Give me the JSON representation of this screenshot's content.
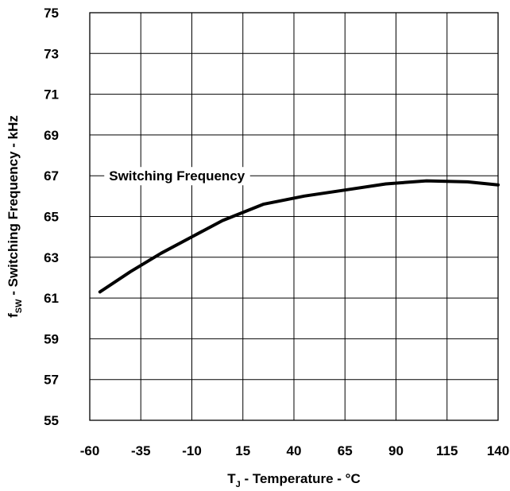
{
  "chart_data": {
    "type": "line",
    "title": "",
    "xlabel": {
      "main": "T",
      "sub": "J",
      "rest": " - Temperature - °C"
    },
    "ylabel": {
      "main": "f",
      "sub": "SW",
      "rest": " - Switching Frequency - kHz"
    },
    "xlim": [
      -60,
      140
    ],
    "ylim": [
      55,
      75
    ],
    "xticks": [
      -60,
      -35,
      -10,
      15,
      40,
      65,
      90,
      115,
      140
    ],
    "yticks": [
      55,
      57,
      59,
      61,
      63,
      65,
      67,
      69,
      71,
      73,
      75
    ],
    "grid": true,
    "annotation": {
      "text": "Switching Frequency",
      "x": -35,
      "y": 67.0
    },
    "series": [
      {
        "name": "Switching Frequency",
        "x": [
          -55,
          -40,
          -25,
          -10,
          5,
          25,
          45,
          65,
          85,
          105,
          125,
          140
        ],
        "y": [
          61.3,
          62.3,
          63.2,
          64.0,
          64.8,
          65.6,
          66.0,
          66.3,
          66.6,
          66.75,
          66.7,
          66.55
        ]
      }
    ]
  }
}
